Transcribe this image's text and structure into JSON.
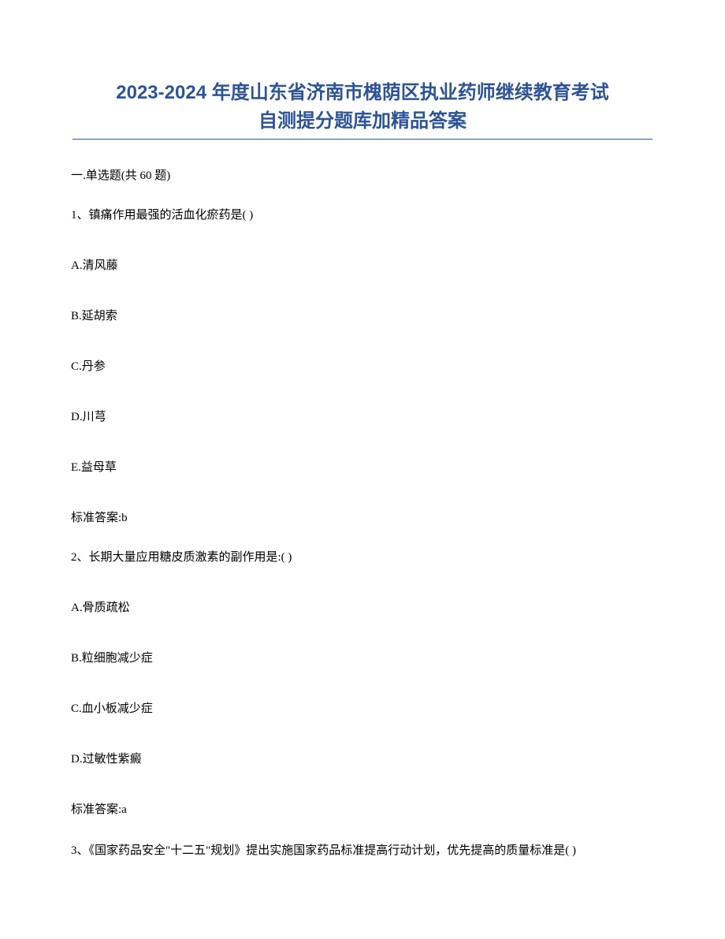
{
  "title_line1": "2023-2024 年度山东省济南市槐荫区执业药师继续教育考试",
  "title_line2": "自测提分题库加精品答案",
  "section_header": "一.单选题(共 60 题)",
  "q1": {
    "stem": "1、镇痛作用最强的活血化瘀药是( )",
    "A": "A.清风藤",
    "B": "B.延胡索",
    "C": "C.丹参",
    "D": "D.川芎",
    "E": "E.益母草",
    "answer": "标准答案:b"
  },
  "q2": {
    "stem": "2、长期大量应用糖皮质激素的副作用是:( )",
    "A": "A.骨质疏松",
    "B": "B.粒细胞减少症",
    "C": "C.血小板减少症",
    "D": "D.过敏性紫癜",
    "answer": "标准答案:a"
  },
  "q3": {
    "stem": "3、《国家药品安全\"十二五\"规划》提出实施国家药品标准提高行动计划，优先提高的质量标准是( )"
  },
  "colors": {
    "title_color": "#2e5496",
    "text_color": "#000000",
    "background": "#ffffff",
    "underline_color": "#2e5496"
  },
  "typography": {
    "title_fontsize": 24,
    "body_fontsize": 15,
    "title_weight": "bold"
  }
}
